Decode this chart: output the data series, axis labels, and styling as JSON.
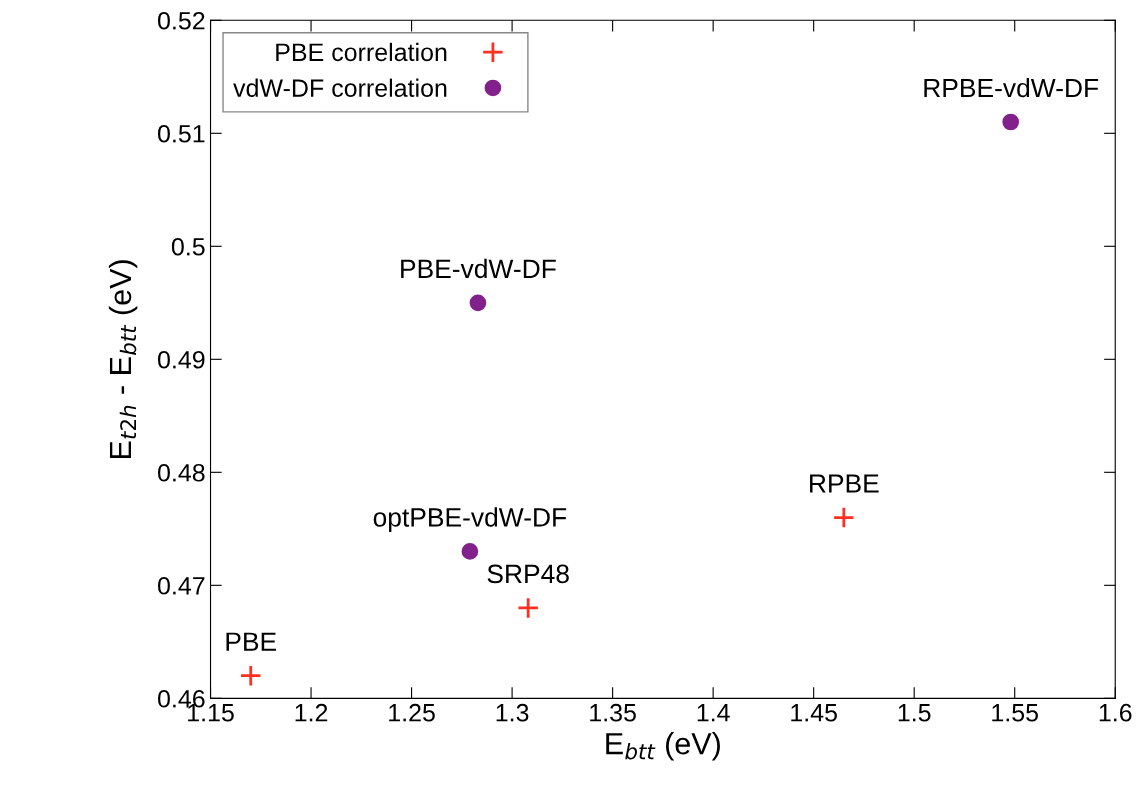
{
  "chart_data": {
    "type": "scatter",
    "xlabel": "E$_{btt}$ (eV)",
    "ylabel": "E$_{t2h}$ - E$_{btt}$ (eV)",
    "xlim": [
      1.15,
      1.6
    ],
    "xticks": [
      1.15,
      1.2,
      1.25,
      1.3,
      1.35,
      1.4,
      1.45,
      1.5,
      1.55,
      1.6
    ],
    "ylim": [
      0.46,
      0.52
    ],
    "yticks": [
      0.46,
      0.47,
      0.48,
      0.49,
      0.5,
      0.51,
      0.52
    ],
    "series": [
      {
        "name": "PBE correlation",
        "color": "#ff3020",
        "marker": "cross",
        "x": [
          1.17,
          1.308,
          1.465
        ],
        "values": [
          0.462,
          0.468,
          0.476
        ]
      },
      {
        "name": "vdW-DF correlation",
        "color": "#82208c",
        "marker": "circle",
        "x": [
          1.279,
          1.283,
          1.548
        ],
        "values": [
          0.473,
          0.495,
          0.511
        ]
      }
    ],
    "annotations": [
      {
        "text": "PBE",
        "x": 1.17,
        "y": 0.462
      },
      {
        "text": "SRP48",
        "x": 1.308,
        "y": 0.468
      },
      {
        "text": "RPBE",
        "x": 1.465,
        "y": 0.476
      },
      {
        "text": "optPBE-vdW-DF",
        "x": 1.279,
        "y": 0.473
      },
      {
        "text": "PBE-vdW-DF",
        "x": 1.283,
        "y": 0.495
      },
      {
        "text": "RPBE-vdW-DF",
        "x": 1.548,
        "y": 0.511
      }
    ],
    "legend": "top left",
    "grid": false
  }
}
